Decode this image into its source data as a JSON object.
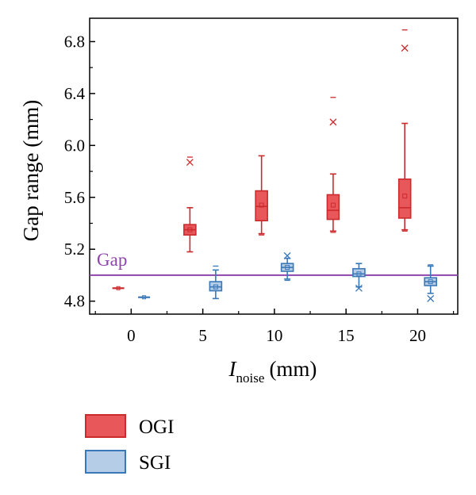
{
  "chart_data": {
    "type": "box",
    "title": "",
    "xlabel": {
      "main": "I",
      "sub": "noise",
      "unit": "(mm)"
    },
    "ylabel": "Gap range (mm)",
    "x_ticks": [
      "0",
      "5",
      "10",
      "15",
      "20"
    ],
    "y_ticks": [
      "4.8",
      "5.2",
      "5.6",
      "6.0",
      "6.4",
      "6.8"
    ],
    "xlim": [
      -2.9,
      22.8
    ],
    "ylim": [
      4.7,
      6.98
    ],
    "grid": false,
    "legend_position": "bottom-left, below plot",
    "reference_line": {
      "label": "Gap",
      "y": 5.0,
      "color": "#8e44ad"
    },
    "series": [
      {
        "name": "OGI",
        "fill": "#e8575a",
        "stroke": "#cc2b2e",
        "boxes": [
          {
            "x": 0,
            "whisker_low": 4.9,
            "q1": 4.9,
            "median": 4.9,
            "q3": 4.9,
            "whisker_high": 4.9,
            "mean": 4.9,
            "outliers_x": [],
            "outliers_dash": []
          },
          {
            "x": 5,
            "whisker_low": 5.18,
            "q1": 5.31,
            "median": 5.35,
            "q3": 5.39,
            "whisker_high": 5.52,
            "mean": 5.35,
            "outliers_x": [
              5.87
            ],
            "outliers_dash": [
              5.91
            ]
          },
          {
            "x": 10,
            "whisker_low": 5.32,
            "q1": 5.42,
            "median": 5.53,
            "q3": 5.65,
            "whisker_high": 5.92,
            "mean": 5.54,
            "outliers_x": [],
            "outliers_dash": [
              5.31
            ]
          },
          {
            "x": 15,
            "whisker_low": 5.34,
            "q1": 5.43,
            "median": 5.5,
            "q3": 5.62,
            "whisker_high": 5.78,
            "mean": 5.54,
            "outliers_x": [
              6.18
            ],
            "outliers_dash": [
              6.37,
              5.33
            ]
          },
          {
            "x": 20,
            "whisker_low": 5.35,
            "q1": 5.44,
            "median": 5.52,
            "q3": 5.74,
            "whisker_high": 6.17,
            "mean": 5.61,
            "outliers_x": [
              6.75
            ],
            "outliers_dash": [
              6.89,
              5.34
            ]
          }
        ]
      },
      {
        "name": "SGI",
        "fill": "#b5cde6",
        "stroke": "#3a78b8",
        "boxes": [
          {
            "x": 0,
            "whisker_low": 4.83,
            "q1": 4.83,
            "median": 4.83,
            "q3": 4.83,
            "whisker_high": 4.83,
            "mean": 4.83,
            "outliers_x": [],
            "outliers_dash": []
          },
          {
            "x": 5,
            "whisker_low": 4.82,
            "q1": 4.88,
            "median": 4.91,
            "q3": 4.95,
            "whisker_high": 5.04,
            "mean": 4.91,
            "outliers_x": [],
            "outliers_dash": [
              5.07
            ]
          },
          {
            "x": 10,
            "whisker_low": 4.97,
            "q1": 5.03,
            "median": 5.06,
            "q3": 5.09,
            "whisker_high": 5.13,
            "mean": 5.06,
            "outliers_x": [
              5.15
            ],
            "outliers_dash": [
              4.96
            ]
          },
          {
            "x": 15,
            "whisker_low": 4.91,
            "q1": 4.99,
            "median": 5.01,
            "q3": 5.05,
            "whisker_high": 5.09,
            "mean": 5.01,
            "outliers_x": [
              4.9
            ],
            "outliers_dash": []
          },
          {
            "x": 20,
            "whisker_low": 4.86,
            "q1": 4.92,
            "median": 4.95,
            "q3": 4.98,
            "whisker_high": 5.07,
            "mean": 4.95,
            "outliers_x": [
              4.82
            ],
            "outliers_dash": [
              5.08
            ]
          }
        ]
      }
    ]
  }
}
